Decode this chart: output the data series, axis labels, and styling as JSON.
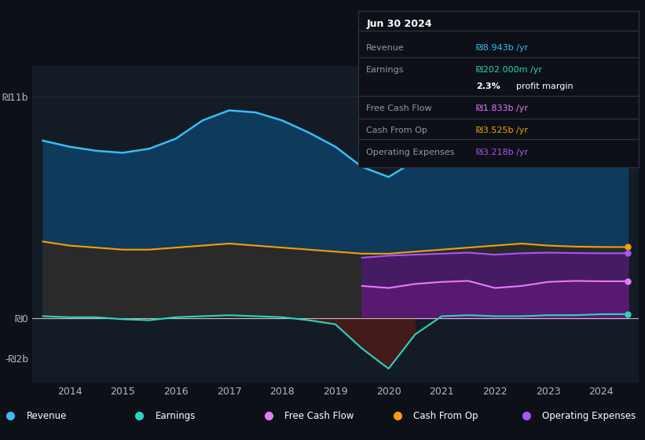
{
  "bg_color": "#0d1117",
  "plot_bg_color": "#131b25",
  "grid_color": "#1e2d3d",
  "title_box": {
    "date": "Jun 30 2024",
    "rows": [
      {
        "label": "Revenue",
        "value": "₪8.943b /yr",
        "value_color": "#38bdf8"
      },
      {
        "label": "Earnings",
        "value": "₪202.000m /yr",
        "value_color": "#2dd4bf"
      },
      {
        "label": "",
        "value": "2.3% profit margin",
        "value_color": "#ffffff"
      },
      {
        "label": "Free Cash Flow",
        "value": "₪1.833b /yr",
        "value_color": "#e879f9"
      },
      {
        "label": "Cash From Op",
        "value": "₪3.525b /yr",
        "value_color": "#f59e0b"
      },
      {
        "label": "Operating Expenses",
        "value": "₪3.218b /yr",
        "value_color": "#a855f7"
      }
    ]
  },
  "x_years": [
    2013.5,
    2014,
    2014.5,
    2015,
    2015.5,
    2016,
    2016.5,
    2017,
    2017.5,
    2018,
    2018.5,
    2019,
    2019.5,
    2020,
    2020.5,
    2021,
    2021.5,
    2022,
    2022.5,
    2023,
    2023.5,
    2024,
    2024.5
  ],
  "revenue": [
    8.8,
    8.5,
    8.3,
    8.2,
    8.4,
    8.9,
    9.8,
    10.3,
    10.2,
    9.8,
    9.2,
    8.5,
    7.5,
    7.0,
    7.8,
    8.0,
    8.2,
    8.3,
    8.4,
    8.6,
    8.7,
    8.9,
    8.943
  ],
  "earnings": [
    0.1,
    0.05,
    0.05,
    -0.05,
    -0.1,
    0.05,
    0.1,
    0.15,
    0.1,
    0.05,
    -0.1,
    -0.3,
    -1.5,
    -2.5,
    -0.8,
    0.1,
    0.15,
    0.1,
    0.1,
    0.15,
    0.15,
    0.2,
    0.202
  ],
  "free_cash_flow": [
    null,
    null,
    null,
    null,
    null,
    null,
    null,
    null,
    null,
    null,
    null,
    null,
    1.6,
    1.5,
    1.7,
    1.8,
    1.85,
    1.5,
    1.6,
    1.8,
    1.85,
    1.833,
    1.833
  ],
  "cash_from_op": [
    3.8,
    3.6,
    3.5,
    3.4,
    3.4,
    3.5,
    3.6,
    3.7,
    3.6,
    3.5,
    3.4,
    3.3,
    3.2,
    3.2,
    3.3,
    3.4,
    3.5,
    3.6,
    3.7,
    3.6,
    3.55,
    3.53,
    3.525
  ],
  "operating_expenses": [
    null,
    null,
    null,
    null,
    null,
    null,
    null,
    null,
    null,
    null,
    null,
    null,
    3.0,
    3.1,
    3.15,
    3.2,
    3.25,
    3.15,
    3.22,
    3.25,
    3.23,
    3.22,
    3.218
  ],
  "ylim": [
    -3.2,
    12.5
  ],
  "ytick_vals": [
    -2,
    0,
    11
  ],
  "ytick_labels": [
    "-₪2b",
    "₪0",
    "₪11b"
  ],
  "xtick_years": [
    2014,
    2015,
    2016,
    2017,
    2018,
    2019,
    2020,
    2021,
    2022,
    2023,
    2024
  ],
  "revenue_color": "#38bdf8",
  "revenue_fill": "#0e3a5c",
  "earnings_color": "#2dd4bf",
  "earnings_neg_fill": "#4a1a1a",
  "free_cash_flow_color": "#e879f9",
  "free_cash_flow_fill": "#6b1a7e",
  "cash_from_op_color": "#f59e0b",
  "cash_from_op_fill": "#2a2a2a",
  "operating_expenses_color": "#a855f7",
  "operating_expenses_fill": "#4a1a6e",
  "legend_items": [
    {
      "label": "Revenue",
      "color": "#38bdf8"
    },
    {
      "label": "Earnings",
      "color": "#2dd4bf"
    },
    {
      "label": "Free Cash Flow",
      "color": "#e879f9"
    },
    {
      "label": "Cash From Op",
      "color": "#f59e0b"
    },
    {
      "label": "Operating Expenses",
      "color": "#a855f7"
    }
  ]
}
